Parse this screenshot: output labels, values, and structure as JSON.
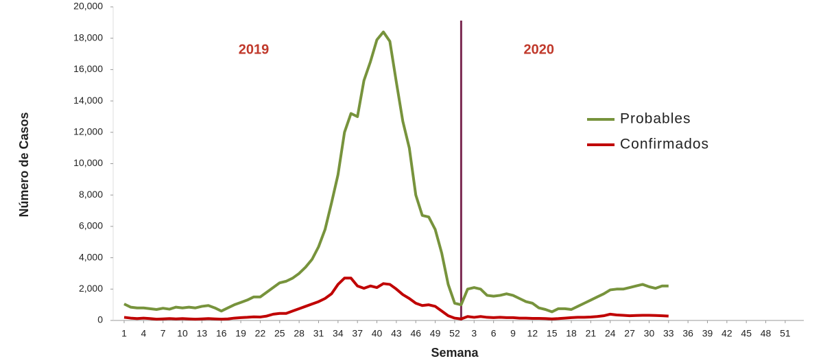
{
  "chart_data": {
    "type": "line",
    "ylabel": "Número de Casos",
    "xlabel": "Semana",
    "annotations": [
      {
        "text": "2019",
        "category_index": 20
      },
      {
        "text": "2020",
        "category_index": 64
      }
    ],
    "divider_after_index": 51,
    "legend": "right",
    "grid": false,
    "ylim": [
      0,
      20000
    ],
    "yticks": [
      0,
      {
        "value": 2000,
        "label": "2,000"
      },
      {
        "value": 4000,
        "label": "4,000"
      },
      {
        "value": 6000,
        "label": "6,000"
      },
      {
        "value": 8000,
        "label": "8,000"
      },
      {
        "value": 10000,
        "label": "10,000"
      },
      {
        "value": 12000,
        "label": "12,000"
      },
      {
        "value": 14000,
        "label": "14,000"
      },
      {
        "value": 16000,
        "label": "16,000"
      },
      {
        "value": 18000,
        "label": "18,000"
      },
      {
        "value": 20000,
        "label": "20,000"
      }
    ],
    "categories": [
      1,
      null,
      null,
      4,
      null,
      null,
      7,
      null,
      null,
      10,
      null,
      null,
      13,
      null,
      null,
      16,
      null,
      null,
      19,
      null,
      null,
      22,
      null,
      null,
      25,
      null,
      null,
      28,
      null,
      null,
      31,
      null,
      null,
      34,
      null,
      null,
      37,
      null,
      null,
      40,
      null,
      null,
      43,
      null,
      null,
      46,
      null,
      null,
      49,
      null,
      null,
      52,
      null,
      null,
      3,
      null,
      null,
      6,
      null,
      null,
      9,
      null,
      null,
      12,
      null,
      null,
      15,
      null,
      null,
      18,
      null,
      null,
      21,
      null,
      null,
      24,
      null,
      null,
      27,
      null,
      null,
      30,
      null,
      null,
      33,
      null,
      null,
      36,
      null,
      null,
      39,
      null,
      null,
      42,
      null,
      null,
      45,
      null,
      null,
      48,
      null,
      null,
      51,
      null
    ],
    "series": [
      {
        "name": "Probables",
        "color": "#77933c",
        "values": [
          1050,
          850,
          800,
          800,
          750,
          700,
          780,
          720,
          850,
          800,
          850,
          800,
          900,
          950,
          800,
          600,
          800,
          1000,
          1150,
          1300,
          1500,
          1500,
          1800,
          2100,
          2400,
          2500,
          2700,
          3000,
          3400,
          3900,
          4700,
          5800,
          7500,
          9300,
          12000,
          13200,
          13000,
          15300,
          16500,
          17900,
          18400,
          17800,
          15200,
          12700,
          11000,
          8000,
          6700,
          6600,
          5800,
          4300,
          2300,
          1100,
          1000,
          2000,
          2100,
          2000,
          1600,
          1550,
          1600,
          1700,
          1600,
          1400,
          1200,
          1100,
          800,
          700,
          550,
          750,
          750,
          700,
          900,
          1100,
          1300,
          1500,
          1700,
          1950,
          2000,
          2000,
          2100,
          2200,
          2300,
          2150,
          2050,
          2200,
          2200,
          null,
          null,
          null,
          null,
          null,
          null,
          null,
          null,
          null,
          null,
          null,
          null,
          null,
          null,
          null,
          null,
          null,
          null,
          null
        ]
      },
      {
        "name": "Confirmados",
        "color": "#c00000",
        "values": [
          200,
          150,
          120,
          150,
          120,
          80,
          100,
          120,
          100,
          120,
          100,
          80,
          100,
          120,
          100,
          80,
          100,
          150,
          180,
          200,
          230,
          220,
          280,
          400,
          450,
          450,
          600,
          750,
          900,
          1050,
          1200,
          1400,
          1700,
          2300,
          2700,
          2700,
          2200,
          2050,
          2200,
          2100,
          2350,
          2300,
          2000,
          1650,
          1400,
          1100,
          950,
          1000,
          900,
          600,
          300,
          150,
          100,
          250,
          200,
          250,
          200,
          180,
          200,
          180,
          180,
          150,
          150,
          130,
          130,
          120,
          100,
          120,
          150,
          180,
          200,
          200,
          220,
          250,
          300,
          400,
          350,
          330,
          300,
          320,
          330,
          330,
          320,
          300,
          280,
          null,
          null,
          null,
          null,
          null,
          null,
          null,
          null,
          null,
          null,
          null,
          null,
          null,
          null,
          null,
          null,
          null,
          null,
          null
        ]
      }
    ]
  }
}
